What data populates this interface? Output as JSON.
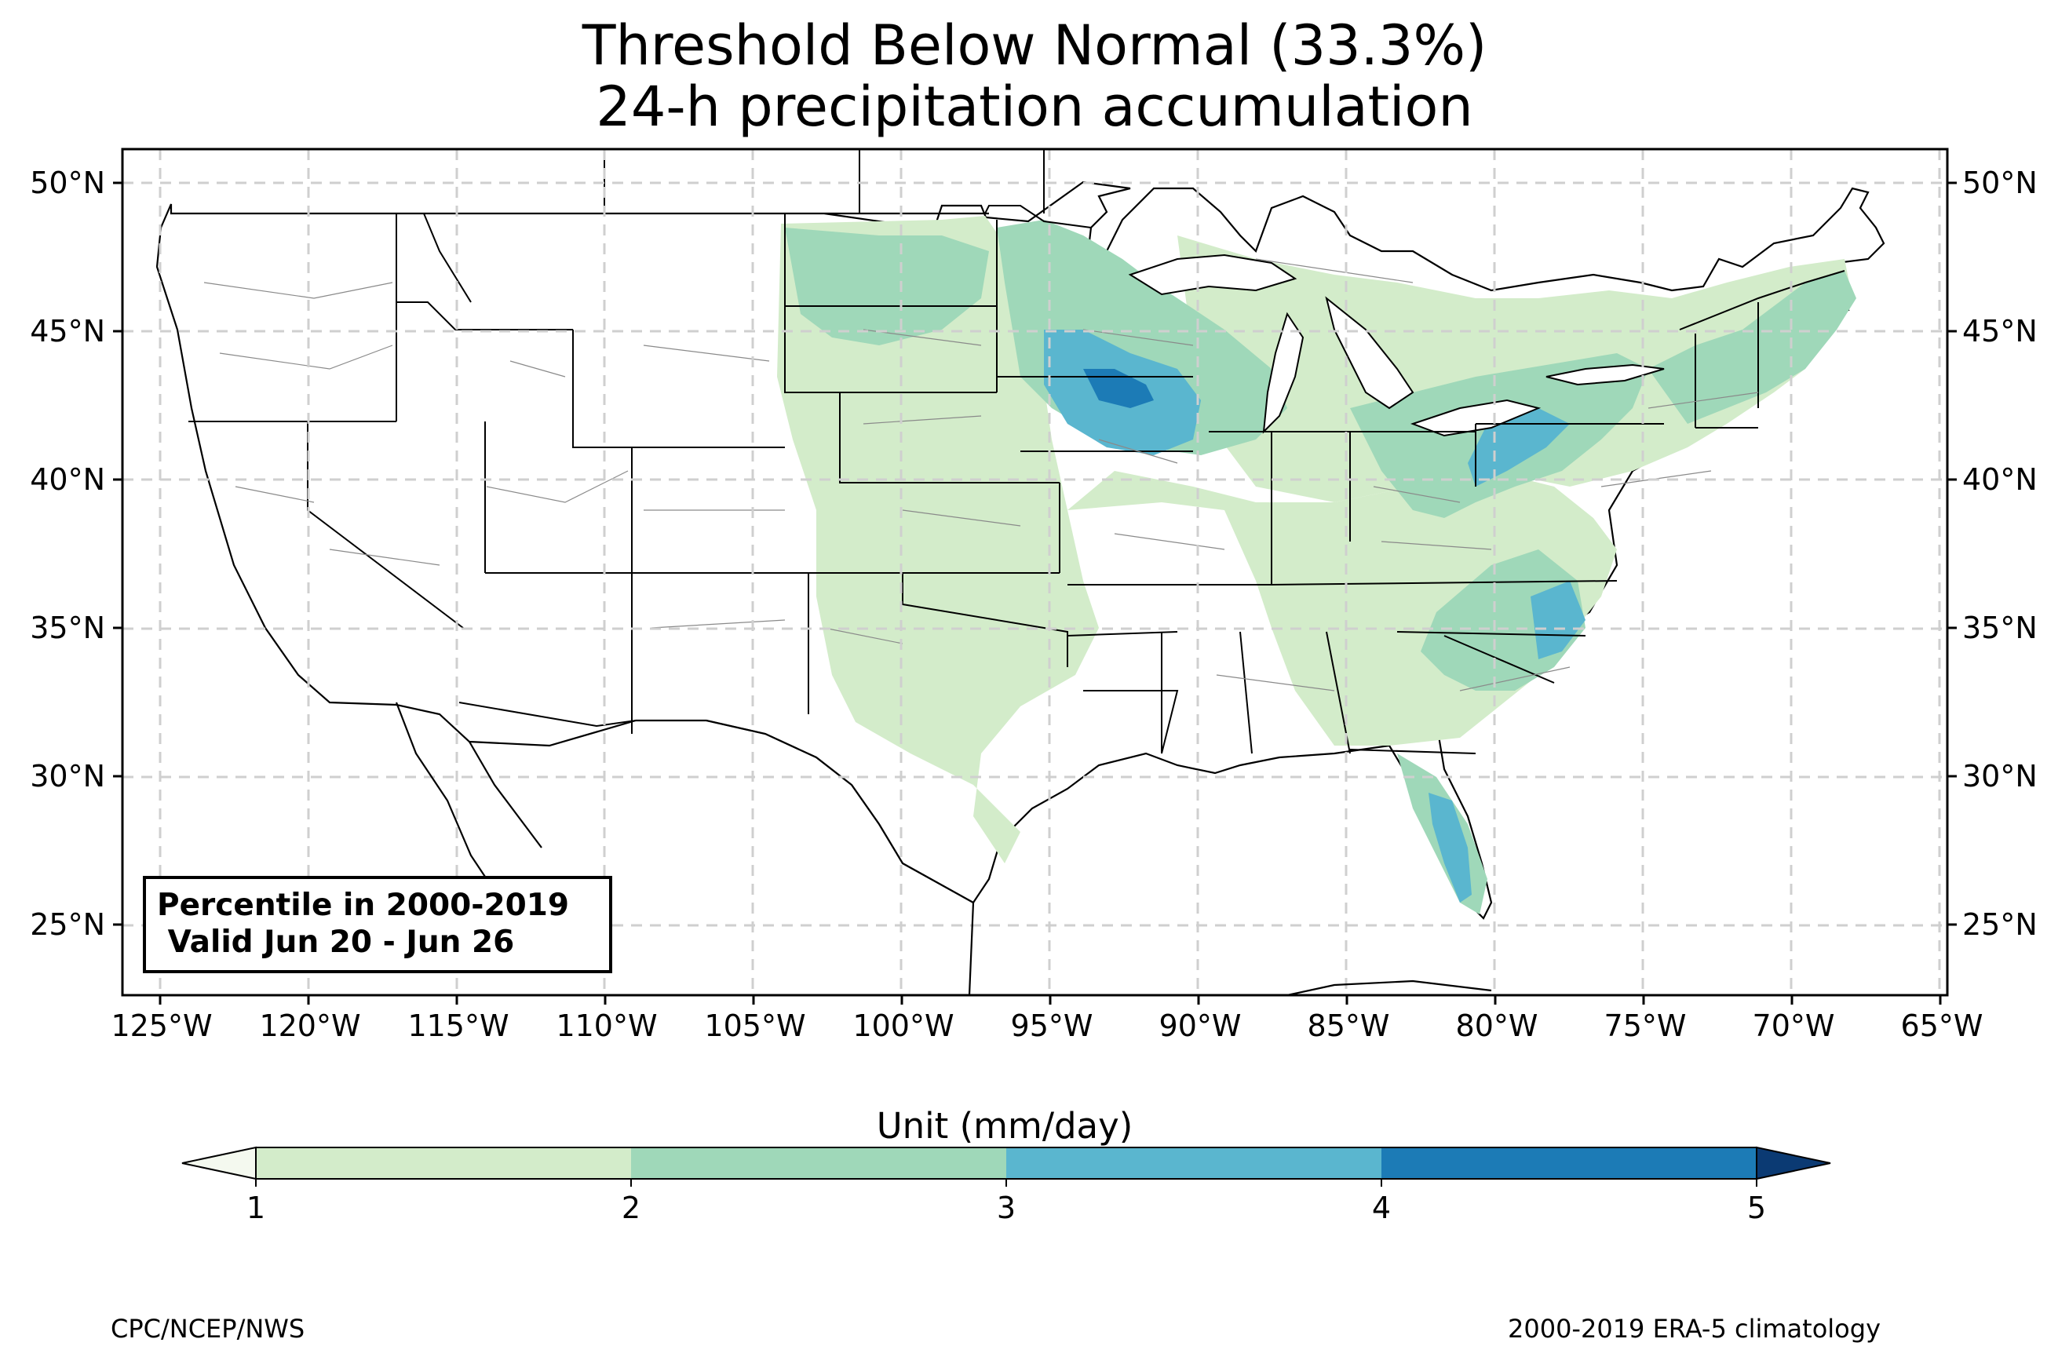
{
  "title": {
    "line1": "Threshold Below Normal (33.3%)",
    "line2": "24-h precipitation accumulation"
  },
  "map": {
    "lon_ticks": [
      "125°W",
      "120°W",
      "115°W",
      "110°W",
      "105°W",
      "100°W",
      "95°W",
      "90°W",
      "85°W",
      "80°W",
      "75°W",
      "70°W",
      "65°W"
    ],
    "lat_ticks": [
      "50°N",
      "45°N",
      "40°N",
      "35°N",
      "30°N",
      "25°N"
    ],
    "inset": {
      "line1": "Percentile in 2000-2019",
      "line2": " Valid Jun 20 - Jun 26"
    },
    "colors": {
      "land_base": "#f4f9ef",
      "lake": "#ffffff"
    },
    "features": [
      "northern-plains-green",
      "upper-midwest-max",
      "great-lakes-band",
      "northeast-band",
      "southeast-band",
      "florida-peninsula-max",
      "gulf-coast-band"
    ]
  },
  "colorbar": {
    "label": "Unit (mm/day)",
    "ticks": [
      "1",
      "2",
      "3",
      "4",
      "5"
    ],
    "colors": [
      "#f4f9ef",
      "#d3ecca",
      "#9fd8b9",
      "#5ab6cf",
      "#1c7bb6",
      "#0b3a73"
    ]
  },
  "footer": {
    "left": "CPC/NCEP/NWS",
    "right": "2000-2019 ERA-5 climatology"
  }
}
